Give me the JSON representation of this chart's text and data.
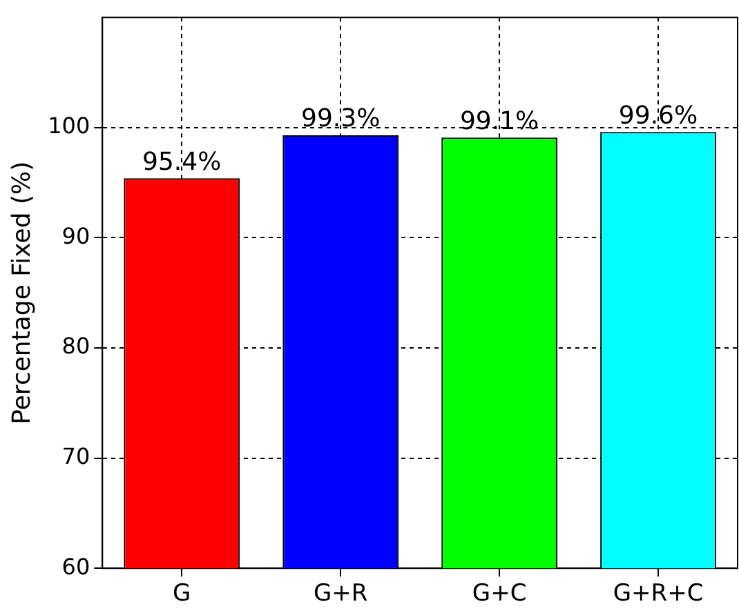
{
  "chart_data": {
    "type": "bar",
    "ylabel": "Percentage Fixed (%)",
    "categories": [
      "G",
      "G+R",
      "G+C",
      "G+R+C"
    ],
    "values": [
      95.4,
      99.3,
      99.1,
      99.6
    ],
    "colors": [
      "#ff0000",
      "#0000ff",
      "#00ff00",
      "#00ffff"
    ],
    "value_labels": [
      "95.4%",
      "99.3%",
      "99.1%",
      "99.6%"
    ],
    "ylim": [
      60,
      110
    ],
    "yticks": [
      60,
      70,
      80,
      90,
      100
    ],
    "grid": true
  }
}
